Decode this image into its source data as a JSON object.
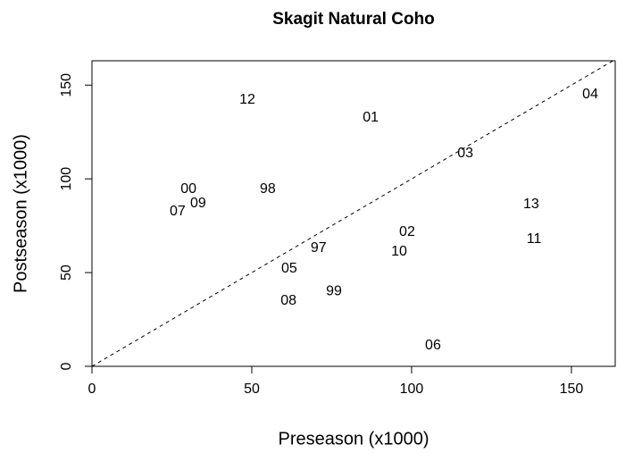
{
  "chart_data": {
    "type": "scatter",
    "title": "Skagit Natural Coho",
    "xlabel": "Preseason (x1000)",
    "ylabel": "Postseason (x1000)",
    "labels": [
      "12",
      "01",
      "04",
      "03",
      "00",
      "98",
      "09",
      "07",
      "13",
      "02",
      "11",
      "97",
      "10",
      "05",
      "99",
      "08",
      "06"
    ],
    "x": [
      48.6,
      87.2,
      155.9,
      116.8,
      30.2,
      55,
      33.2,
      26.8,
      137.4,
      98.6,
      138.3,
      70.9,
      96.1,
      61.7,
      75.7,
      61.5,
      106.7
    ],
    "values": [
      142.1,
      132.6,
      145,
      113.5,
      94.4,
      94.4,
      86.8,
      82.5,
      86.3,
      71.5,
      67.7,
      62.9,
      61,
      52,
      40,
      34.8,
      11
    ],
    "xlim": [
      0,
      163.7
    ],
    "ylim": [
      0,
      163
    ],
    "xticks": [
      0,
      50,
      100,
      150
    ],
    "yticks": [
      0,
      50,
      100,
      150
    ]
  }
}
